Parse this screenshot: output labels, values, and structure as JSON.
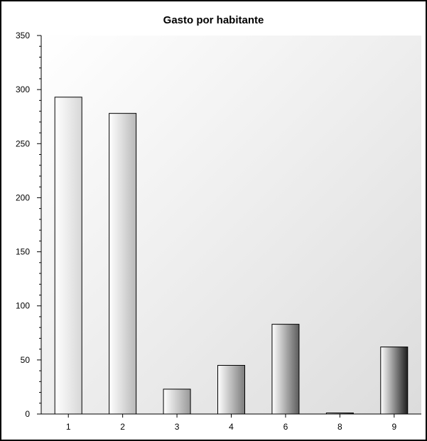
{
  "chart_data": {
    "type": "bar",
    "title": "Gasto por habitante",
    "xlabel": "",
    "ylabel": "",
    "categories": [
      "1",
      "2",
      "3",
      "4",
      "6",
      "8",
      "9"
    ],
    "values": [
      293,
      278,
      23,
      45,
      83,
      1,
      62
    ],
    "ylim": [
      0,
      350
    ],
    "yticks": [
      "0",
      "50",
      "100",
      "150",
      "200",
      "250",
      "300",
      "350"
    ],
    "grid": false,
    "legend": "none",
    "colors": {
      "bar_light": "#ffffff",
      "bar_dark": "#222222",
      "plot_bg_light": "#ffffff",
      "plot_bg_dark": "#dcdcdc",
      "axis": "#000000"
    }
  }
}
